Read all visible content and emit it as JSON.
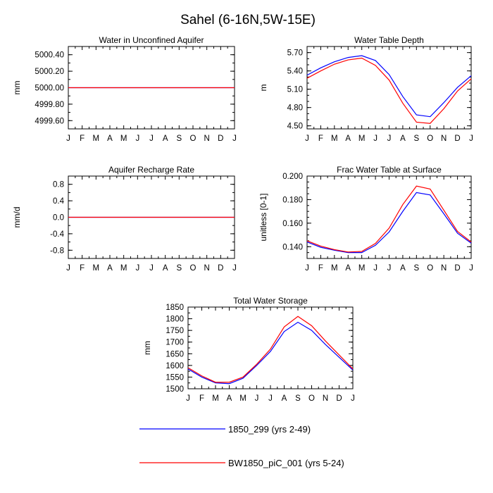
{
  "title": "Sahel (6-16N,5W-15E)",
  "months": [
    "J",
    "F",
    "M",
    "A",
    "M",
    "J",
    "J",
    "A",
    "S",
    "O",
    "N",
    "D",
    "J"
  ],
  "series_styles": [
    {
      "color": "#0000ff"
    },
    {
      "color": "#ff0000"
    }
  ],
  "legend": {
    "entries": [
      {
        "label": "1850_299 (yrs 2-49)",
        "color": "#0000ff"
      },
      {
        "label": "BW1850_piC_001 (yrs 5-24)",
        "color": "#ff0000"
      }
    ]
  },
  "chart_data": [
    {
      "type": "line",
      "title": "Water in Unconfined Aquifer",
      "ylabel": "mm",
      "ylim": [
        4999.5,
        5000.5
      ],
      "yticks": [
        4999.6,
        4999.8,
        5000.0,
        5000.2,
        5000.4
      ],
      "ytick_labels": [
        "4999.60",
        "4999.80",
        "5000.00",
        "5000.20",
        "5000.40"
      ],
      "yminor_step": 0.1,
      "x": [
        "J",
        "F",
        "M",
        "A",
        "M",
        "J",
        "J",
        "A",
        "S",
        "O",
        "N",
        "D",
        "J"
      ],
      "series": [
        {
          "values": [
            5000,
            5000,
            5000,
            5000,
            5000,
            5000,
            5000,
            5000,
            5000,
            5000,
            5000,
            5000,
            5000
          ]
        },
        {
          "values": [
            5000,
            5000,
            5000,
            5000,
            5000,
            5000,
            5000,
            5000,
            5000,
            5000,
            5000,
            5000,
            5000
          ]
        }
      ]
    },
    {
      "type": "line",
      "title": "Water Table Depth",
      "ylabel": "m",
      "ylim": [
        4.45,
        5.8
      ],
      "yticks": [
        4.5,
        4.8,
        5.1,
        5.4,
        5.7
      ],
      "ytick_labels": [
        "4.50",
        "4.80",
        "5.10",
        "5.40",
        "5.70"
      ],
      "yminor_step": 0.1,
      "x": [
        "J",
        "F",
        "M",
        "A",
        "M",
        "J",
        "J",
        "A",
        "S",
        "O",
        "N",
        "D",
        "J"
      ],
      "series": [
        {
          "values": [
            5.33,
            5.45,
            5.55,
            5.62,
            5.65,
            5.57,
            5.34,
            4.98,
            4.68,
            4.65,
            4.88,
            5.13,
            5.32
          ]
        },
        {
          "values": [
            5.28,
            5.4,
            5.51,
            5.58,
            5.61,
            5.49,
            5.25,
            4.87,
            4.56,
            4.54,
            4.78,
            5.07,
            5.27
          ]
        }
      ]
    },
    {
      "type": "line",
      "title": "Aquifer Recharge Rate",
      "ylabel": "mm/d",
      "ylim": [
        -1.0,
        1.0
      ],
      "yticks": [
        -0.8,
        -0.4,
        0.0,
        0.4,
        0.8
      ],
      "ytick_labels": [
        "-0.8",
        "-0.4",
        "0.0",
        "0.4",
        "0.8"
      ],
      "yminor_step": 0.2,
      "x": [
        "J",
        "F",
        "M",
        "A",
        "M",
        "J",
        "J",
        "A",
        "S",
        "O",
        "N",
        "D",
        "J"
      ],
      "series": [
        {
          "values": [
            0,
            0,
            0,
            0,
            0,
            0,
            0,
            0,
            0,
            0,
            0,
            0,
            0
          ]
        },
        {
          "values": [
            0,
            0,
            0,
            0,
            0,
            0,
            0,
            0,
            0,
            0,
            0,
            0,
            0
          ]
        }
      ]
    },
    {
      "type": "line",
      "title": "Frac Water Table at Surface",
      "ylabel": "unitless [0-1]",
      "ylim": [
        0.13,
        0.2
      ],
      "yticks": [
        0.14,
        0.16,
        0.18,
        0.2
      ],
      "ytick_labels": [
        "0.140",
        "0.160",
        "0.180",
        "0.200"
      ],
      "yminor_step": 0.005,
      "x": [
        "J",
        "F",
        "M",
        "A",
        "M",
        "J",
        "J",
        "A",
        "S",
        "O",
        "N",
        "D",
        "J"
      ],
      "series": [
        {
          "values": [
            0.144,
            0.1395,
            0.137,
            0.135,
            0.135,
            0.1412,
            0.1525,
            0.17,
            0.186,
            0.184,
            0.168,
            0.1515,
            0.143
          ]
        },
        {
          "values": [
            0.145,
            0.1405,
            0.1375,
            0.1355,
            0.136,
            0.1428,
            0.1558,
            0.1758,
            0.1915,
            0.189,
            0.171,
            0.153,
            0.144
          ]
        }
      ]
    },
    {
      "type": "line",
      "title": "Total Water Storage",
      "ylabel": "mm",
      "ylim": [
        1500,
        1850
      ],
      "yticks": [
        1500,
        1550,
        1600,
        1650,
        1700,
        1750,
        1800,
        1850
      ],
      "ytick_labels": [
        "1500",
        "1550",
        "1600",
        "1650",
        "1700",
        "1750",
        "1800",
        "1850"
      ],
      "yminor_step": 25,
      "x": [
        "J",
        "F",
        "M",
        "A",
        "M",
        "J",
        "J",
        "A",
        "S",
        "O",
        "N",
        "D",
        "J"
      ],
      "series": [
        {
          "values": [
            1585,
            1550,
            1525,
            1522,
            1545,
            1600,
            1660,
            1745,
            1785,
            1750,
            1690,
            1635,
            1580
          ]
        },
        {
          "values": [
            1590,
            1555,
            1528,
            1528,
            1550,
            1605,
            1670,
            1765,
            1810,
            1770,
            1705,
            1645,
            1585
          ]
        }
      ]
    }
  ]
}
